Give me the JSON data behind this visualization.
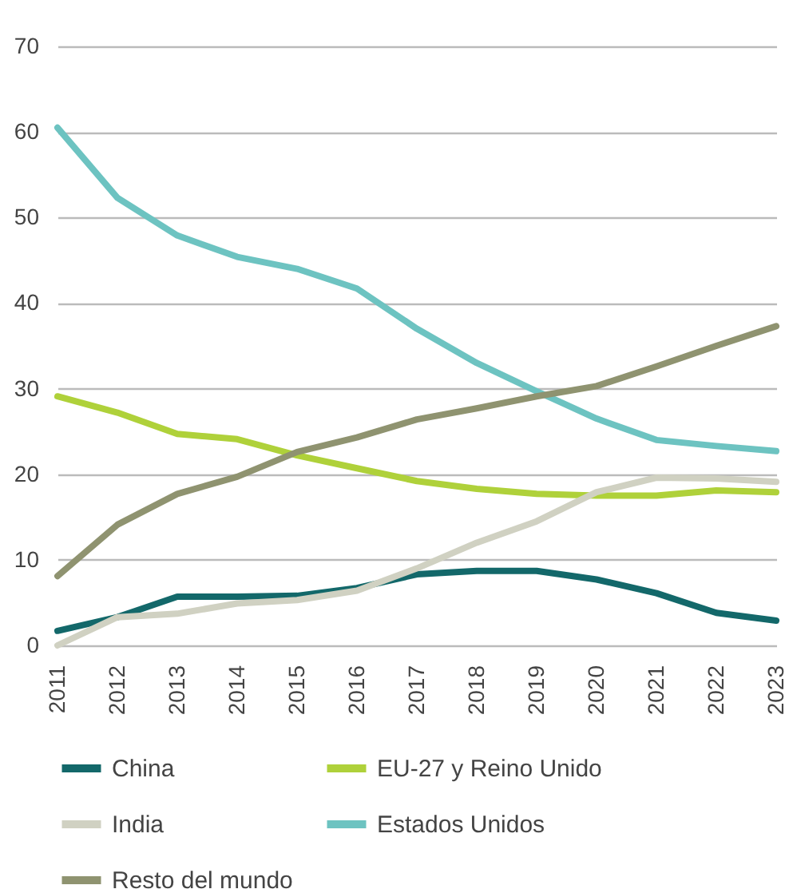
{
  "chart_data": {
    "type": "line",
    "categories": [
      "2011",
      "2012",
      "2013",
      "2014",
      "2015",
      "2016",
      "2017",
      "2018",
      "2019",
      "2020",
      "2021",
      "2022",
      "2023"
    ],
    "series": [
      {
        "name": "China",
        "color": "#13686a",
        "values": [
          1.7,
          3.3,
          5.7,
          5.7,
          5.8,
          6.7,
          8.3,
          8.7,
          8.7,
          7.7,
          6.1,
          3.8,
          2.9
        ]
      },
      {
        "name": "EU-27 y Reino Unido",
        "color": "#afd13a",
        "values": [
          29.1,
          27.2,
          24.7,
          24.1,
          22.2,
          20.7,
          19.2,
          18.3,
          17.7,
          17.5,
          17.5,
          18.1,
          17.9
        ]
      },
      {
        "name": "India",
        "color": "#d0d1c2",
        "values": [
          0,
          3.3,
          3.7,
          4.9,
          5.3,
          6.4,
          9,
          12,
          14.5,
          17.9,
          19.6,
          19.5,
          19.1
        ]
      },
      {
        "name": "Estados Unidos",
        "color": "#6dc3c1",
        "values": [
          60.5,
          52.3,
          47.9,
          45.4,
          44,
          41.7,
          37,
          33,
          29.7,
          26.5,
          24,
          23.3,
          22.7
        ]
      },
      {
        "name": "Resto del mundo",
        "color": "#8f9370",
        "values": [
          8.1,
          14.1,
          17.7,
          19.7,
          22.6,
          24.3,
          26.4,
          27.7,
          29.1,
          30.3,
          32.6,
          35,
          37.3
        ]
      }
    ],
    "ylim": [
      0,
      70
    ],
    "yticks": [
      0,
      10,
      20,
      30,
      40,
      50,
      60,
      70
    ],
    "grid": "y",
    "legend": "bottom",
    "marker": "none",
    "line_style": "solid"
  }
}
